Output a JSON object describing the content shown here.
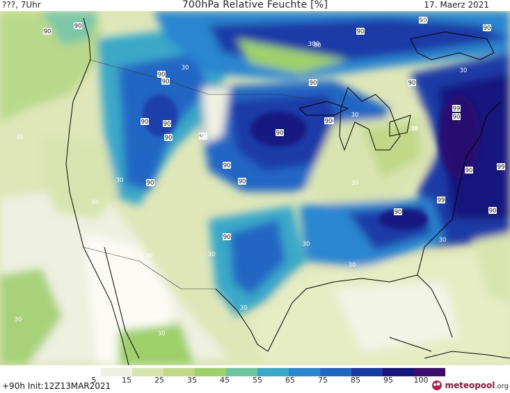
{
  "header": {
    "valid_time": "???, 7Uhr",
    "title": "700hPa Relative Feuchte [%]",
    "date": "17. Maerz 2021"
  },
  "footer": {
    "run_info": "+90h Init:12Z13MAR2021"
  },
  "logo": {
    "name": "meteopool",
    "tld": ".org"
  },
  "legend": {
    "ticks": [
      "5",
      "15",
      "25",
      "35",
      "45",
      "55",
      "65",
      "75",
      "85",
      "95",
      "100"
    ],
    "colors": [
      "#ffffff",
      "#eef0e0",
      "#d8e4b0",
      "#c0d888",
      "#9fd06a",
      "#6cc6a0",
      "#3aa8c8",
      "#2a86d0",
      "#2266c4",
      "#1a3aa6",
      "#16177e",
      "#3a0c6e"
    ]
  },
  "contour_labels": [
    {
      "text": "90"
    },
    {
      "text": "90"
    },
    {
      "text": "90"
    },
    {
      "text": "30"
    },
    {
      "text": "90"
    },
    {
      "text": "30"
    },
    {
      "text": "90"
    },
    {
      "text": "90"
    },
    {
      "text": "30"
    },
    {
      "text": "30"
    },
    {
      "text": "90"
    },
    {
      "text": "90"
    },
    {
      "text": "90"
    },
    {
      "text": "30"
    },
    {
      "text": "90"
    },
    {
      "text": "90"
    },
    {
      "text": "90"
    },
    {
      "text": "90"
    },
    {
      "text": "99"
    },
    {
      "text": "90"
    },
    {
      "text": "30"
    },
    {
      "text": "30"
    },
    {
      "text": "90"
    },
    {
      "text": "90"
    },
    {
      "text": "30"
    },
    {
      "text": "30"
    },
    {
      "text": "30"
    },
    {
      "text": "90"
    },
    {
      "text": "90"
    },
    {
      "text": "90"
    },
    {
      "text": "90"
    },
    {
      "text": "90"
    },
    {
      "text": "99"
    },
    {
      "text": "90"
    },
    {
      "text": "30"
    },
    {
      "text": "30"
    },
    {
      "text": "30"
    },
    {
      "text": "30"
    },
    {
      "text": "90"
    },
    {
      "text": "99"
    },
    {
      "text": "90"
    },
    {
      "text": "90"
    },
    {
      "text": "30"
    },
    {
      "text": "30"
    },
    {
      "text": "30"
    },
    {
      "text": "30"
    },
    {
      "text": "30"
    },
    {
      "text": "30"
    },
    {
      "text": "30"
    },
    {
      "text": "30"
    }
  ]
}
